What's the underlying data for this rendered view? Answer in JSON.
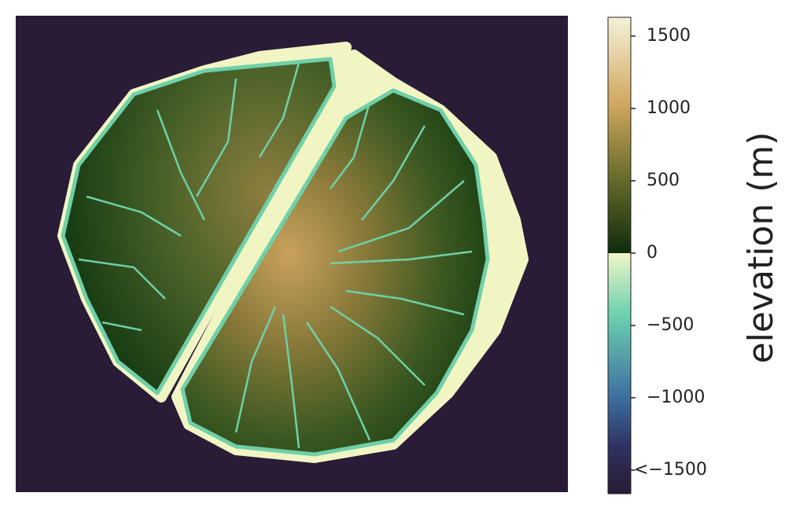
{
  "chart_data": {
    "type": "colorbar",
    "label": "elevation (m)",
    "ylim": [
      -1663,
      1630
    ],
    "yticks": [
      1500,
      1000,
      500,
      0,
      {
        "value": -500,
        "label": "−500"
      },
      {
        "value": -1000,
        "label": "−1000"
      },
      {
        "value": -1500,
        "label": "<−1500"
      }
    ]
  }
}
